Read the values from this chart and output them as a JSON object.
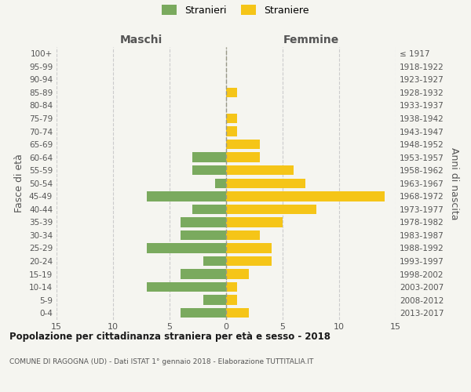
{
  "age_groups": [
    "0-4",
    "5-9",
    "10-14",
    "15-19",
    "20-24",
    "25-29",
    "30-34",
    "35-39",
    "40-44",
    "45-49",
    "50-54",
    "55-59",
    "60-64",
    "65-69",
    "70-74",
    "75-79",
    "80-84",
    "85-89",
    "90-94",
    "95-99",
    "100+"
  ],
  "birth_years": [
    "2013-2017",
    "2008-2012",
    "2003-2007",
    "1998-2002",
    "1993-1997",
    "1988-1992",
    "1983-1987",
    "1978-1982",
    "1973-1977",
    "1968-1972",
    "1963-1967",
    "1958-1962",
    "1953-1957",
    "1948-1952",
    "1943-1947",
    "1938-1942",
    "1933-1937",
    "1928-1932",
    "1923-1927",
    "1918-1922",
    "≤ 1917"
  ],
  "males": [
    4,
    2,
    7,
    4,
    2,
    7,
    4,
    4,
    3,
    7,
    1,
    3,
    3,
    0,
    0,
    0,
    0,
    0,
    0,
    0,
    0
  ],
  "females": [
    2,
    1,
    1,
    2,
    4,
    4,
    3,
    5,
    8,
    14,
    7,
    6,
    3,
    3,
    1,
    1,
    0,
    1,
    0,
    0,
    0
  ],
  "male_color": "#7aaa5e",
  "female_color": "#f5c518",
  "background_color": "#f5f5f0",
  "grid_color": "#cccccc",
  "title": "Popolazione per cittadinanza straniera per età e sesso - 2018",
  "subtitle": "COMUNE DI RAGOGNA (UD) - Dati ISTAT 1° gennaio 2018 - Elaborazione TUTTITALIA.IT",
  "ylabel_left": "Fasce di età",
  "ylabel_right": "Anni di nascita",
  "label_maschi": "Maschi",
  "label_femmine": "Femmine",
  "legend_male": "Stranieri",
  "legend_female": "Straniere",
  "xlim": 15,
  "center_line_color": "#999988"
}
